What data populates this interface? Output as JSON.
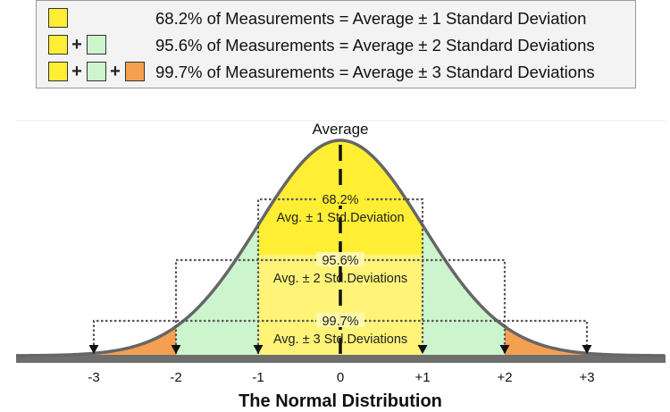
{
  "legend": {
    "rows": [
      {
        "swatches": [
          "yellow"
        ],
        "text": "68.2% of Measurements = Average ± 1 Standard Deviation"
      },
      {
        "swatches": [
          "yellow",
          "green"
        ],
        "text": "95.6% of Measurements = Average ± 2 Standard Deviations"
      },
      {
        "swatches": [
          "yellow",
          "green",
          "orange"
        ],
        "text": "99.7% of Measurements = Average ± 3 Standard Deviations"
      }
    ],
    "plus_sign": "+"
  },
  "diagram": {
    "average_label": "Average",
    "title": "The Normal Distribution",
    "ticks": [
      "-3",
      "-2",
      "-1",
      "0",
      "+1",
      "+2",
      "+3"
    ],
    "ranges": [
      {
        "percent": "68.2%",
        "caption": "Avg. ± 1 Std.Deviation",
        "sigma": 1
      },
      {
        "percent": "95.6%",
        "caption": "Avg. ± 2 Std.Deviations",
        "sigma": 2
      },
      {
        "percent": "99.7%",
        "caption": "Avg. ± 3 Std.Deviations",
        "sigma": 3
      }
    ]
  },
  "colors": {
    "yellow": "#ffee33",
    "pale_yellow": "#fff9b0",
    "green": "#cdf5cd",
    "orange": "#f5a050",
    "curve": "#666666",
    "baseline": "#6e6e6e"
  }
}
